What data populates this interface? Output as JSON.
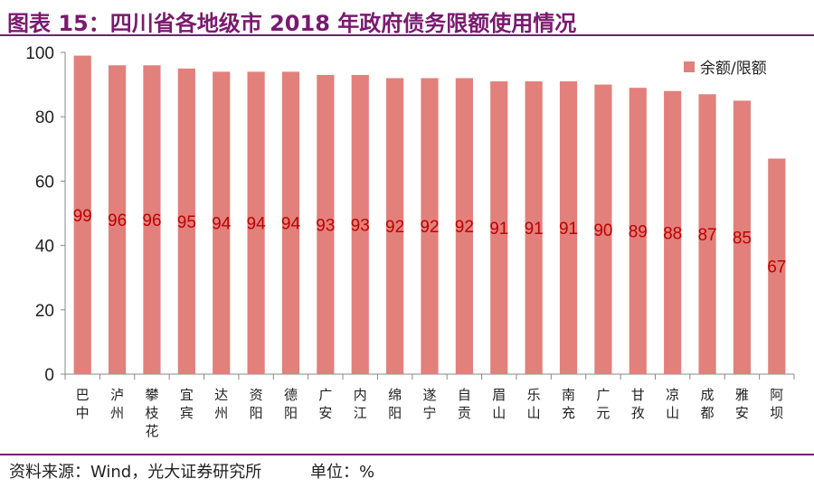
{
  "header": {
    "title": "图表 15：四川省各地级市 2018 年政府债务限额使用情况"
  },
  "footer": {
    "source": "资料来源：Wind，光大证券研究所",
    "unit": "单位：%"
  },
  "colors": {
    "bar": "#e2807c",
    "label": "#c00000",
    "title": "#7a1a6f"
  },
  "chart_data": {
    "type": "bar",
    "categories": [
      "巴中",
      "泸州",
      "攀枝花",
      "宜宾",
      "达州",
      "资阳",
      "德阳",
      "广安",
      "内江",
      "绵阳",
      "遂宁",
      "自贡",
      "眉山",
      "乐山",
      "南充",
      "广元",
      "甘孜",
      "凉山",
      "成都",
      "雅安",
      "阿坝"
    ],
    "series": [
      {
        "name": "余额/限额",
        "values": [
          99,
          96,
          96,
          95,
          94,
          94,
          94,
          93,
          93,
          92,
          92,
          92,
          91,
          91,
          91,
          90,
          89,
          88,
          87,
          85,
          67
        ]
      }
    ],
    "ylim": [
      0,
      100
    ],
    "yticks": [
      0,
      20,
      40,
      60,
      80,
      100
    ],
    "legend": "top-right",
    "grid": false
  }
}
